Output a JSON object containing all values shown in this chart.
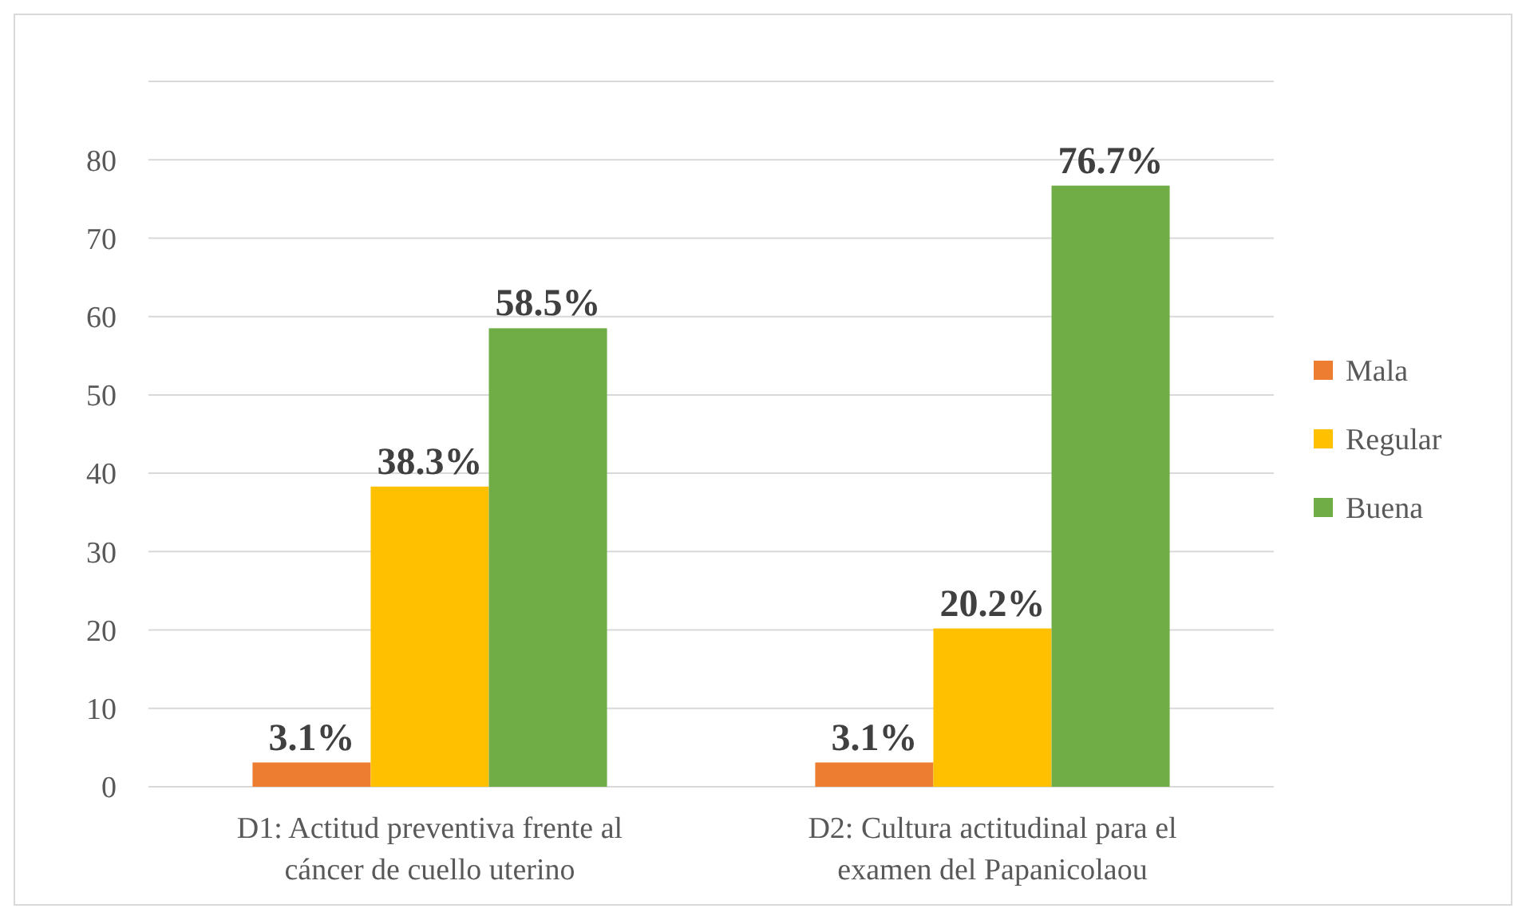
{
  "chart_data": {
    "type": "bar",
    "categories": [
      "D1: Actitud preventiva frente al cáncer de cuello uterino",
      "D2: Cultura actitudinal para el examen del Papanicolaou"
    ],
    "series": [
      {
        "name": "Mala",
        "color": "#ed7d31",
        "values": [
          3.1,
          3.1
        ],
        "value_labels": [
          "3.1%",
          "3.1%"
        ]
      },
      {
        "name": "Regular",
        "color": "#ffc000",
        "values": [
          38.3,
          20.2
        ],
        "value_labels": [
          "38.3%",
          "20.2%"
        ]
      },
      {
        "name": "Buena",
        "color": "#70ad47",
        "values": [
          58.5,
          76.7
        ],
        "value_labels": [
          "58.5%",
          "76.7%"
        ]
      }
    ],
    "ylim": [
      0,
      90
    ],
    "yticks": [
      0,
      10,
      20,
      30,
      40,
      50,
      60,
      70,
      80,
      {
        "value": 90,
        "label": null
      }
    ],
    "grid": "y",
    "legend": "right"
  }
}
